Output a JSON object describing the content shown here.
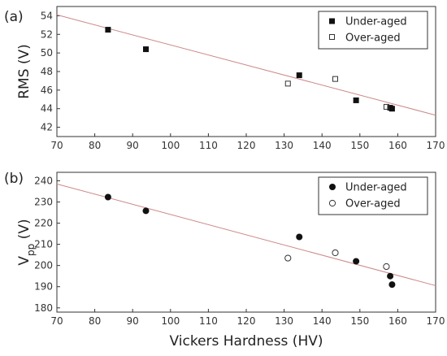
{
  "chart_data": [
    {
      "type": "scatter",
      "panel_label": "(a)",
      "xlabel": "",
      "ylabel": "RMS (V)",
      "xlim": [
        70,
        170
      ],
      "ylim": [
        41,
        55
      ],
      "xticks": [
        "70",
        "80",
        "90",
        "100",
        "110",
        "120",
        "130",
        "140",
        "150",
        "160",
        "170"
      ],
      "yticks": [
        "42",
        "44",
        "46",
        "48",
        "50",
        "52",
        "54"
      ],
      "fit_line": {
        "x": [
          70,
          170
        ],
        "y": [
          54.1,
          43.3
        ],
        "color": "#cc8888"
      },
      "legend_position": "top-right",
      "series": [
        {
          "name": "Under-aged",
          "marker": "filled-square",
          "x": [
            83.5,
            93.5,
            134,
            149,
            158,
            158.5
          ],
          "y": [
            52.5,
            50.4,
            47.6,
            44.9,
            44.1,
            44.0
          ]
        },
        {
          "name": "Over-aged",
          "marker": "open-square",
          "x": [
            131,
            143.5,
            157
          ],
          "y": [
            46.7,
            47.2,
            44.2
          ]
        }
      ]
    },
    {
      "type": "scatter",
      "panel_label": "(b)",
      "xlabel": "Vickers Hardness (HV)",
      "ylabel_main": "V",
      "ylabel_sub": "pp",
      "ylabel_suffix": " (V)",
      "xlim": [
        70,
        170
      ],
      "ylim": [
        178,
        244
      ],
      "xticks": [
        "70",
        "80",
        "90",
        "100",
        "110",
        "120",
        "130",
        "140",
        "150",
        "160",
        "170"
      ],
      "yticks": [
        "180",
        "190",
        "200",
        "210",
        "220",
        "230",
        "240"
      ],
      "fit_line": {
        "x": [
          70,
          170
        ],
        "y": [
          238.5,
          190.5
        ],
        "color": "#cc8888"
      },
      "legend_position": "top-right",
      "series": [
        {
          "name": "Under-aged",
          "marker": "filled-circle",
          "x": [
            83.5,
            93.5,
            134,
            149,
            158,
            158.5
          ],
          "y": [
            232.3,
            225.8,
            213.5,
            202.0,
            195.0,
            191.0
          ]
        },
        {
          "name": "Over-aged",
          "marker": "open-circle",
          "x": [
            131,
            143.5,
            157
          ],
          "y": [
            203.5,
            206.0,
            199.5
          ]
        }
      ]
    }
  ]
}
